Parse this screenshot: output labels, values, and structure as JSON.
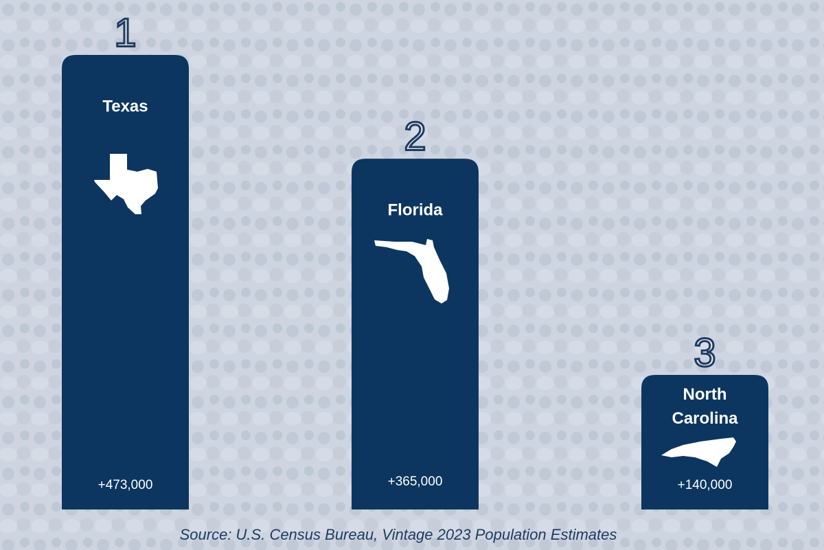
{
  "chart_data": {
    "type": "bar",
    "categories": [
      "Texas",
      "Florida",
      "North Carolina"
    ],
    "ranks": [
      1,
      2,
      3
    ],
    "values": [
      473000,
      365000,
      140000
    ],
    "value_labels": [
      "+473,000",
      "+365,000",
      "+140,000"
    ],
    "color": "#0c365f",
    "source": "Source: U.S. Census Bureau,  Vintage 2023 Population Estimates"
  }
}
